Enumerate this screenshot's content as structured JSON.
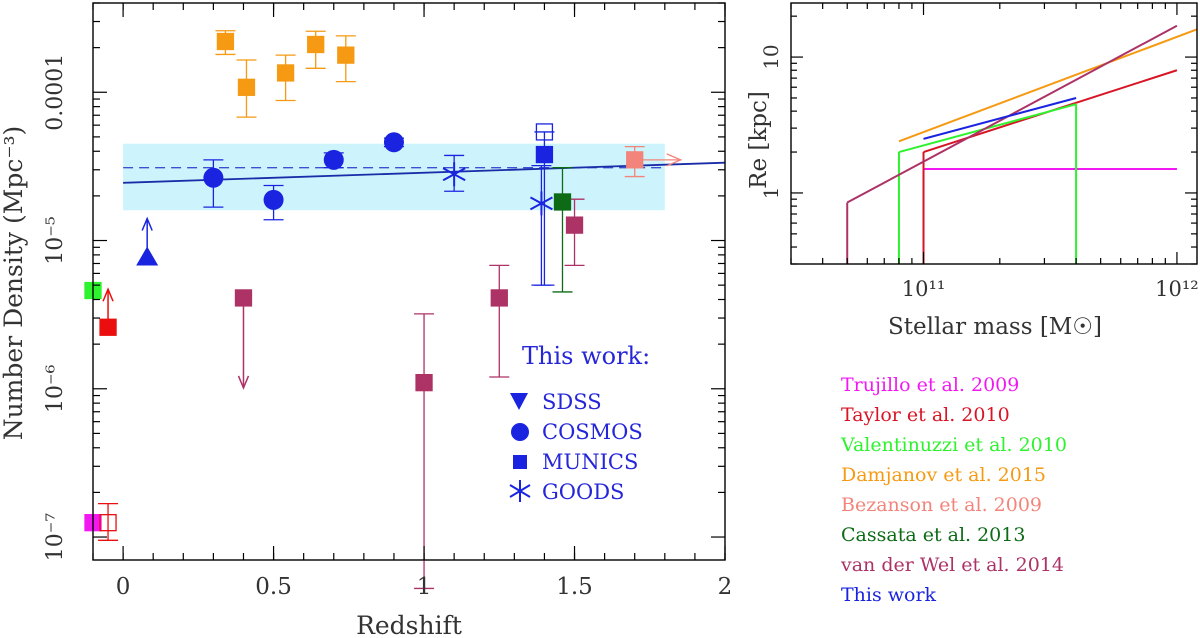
{
  "chart_data": [
    {
      "type": "scatter",
      "xlabel": "Redshift",
      "ylabel": "Number Density (Mpc⁻³)",
      "xlim": [
        -0.1,
        2.0
      ],
      "ylim": [
        7e-08,
        0.0004
      ],
      "yscale": "log",
      "x_ticks": [
        {
          "value": 0,
          "label": "0"
        },
        {
          "value": 0.5,
          "label": "0.5"
        },
        {
          "value": 1,
          "label": "1"
        },
        {
          "value": 1.5,
          "label": "1.5"
        },
        {
          "value": 2,
          "label": "2"
        }
      ],
      "y_ticks": [
        {
          "value": 1e-07,
          "label": "10⁻⁷"
        },
        {
          "value": 1e-06,
          "label": "10⁻⁶"
        },
        {
          "value": 1e-05,
          "label": "10⁻⁵"
        },
        {
          "value": 0.0001,
          "label": "0.0001"
        }
      ],
      "band": {
        "x": [
          0.0,
          1.8
        ],
        "y": [
          1.6e-05,
          4.5e-05
        ],
        "color": "#cdf4fc"
      },
      "reference_line": {
        "y": 3.1e-05,
        "x": [
          0.0,
          1.8
        ],
        "color": "#3c4fd0"
      },
      "fit_line": {
        "x": [
          0.0,
          2.0
        ],
        "y": [
          2.45e-05,
          3.35e-05
        ],
        "color": "#1a2da8"
      },
      "series": [
        {
          "name": "Damjanov et al. 2015",
          "color": "#f59a12",
          "marker": "square",
          "points": [
            {
              "x": 0.34,
              "y": 0.00022,
              "lo": 0.00018,
              "hi": 0.00026
            },
            {
              "x": 0.41,
              "y": 0.000108,
              "lo": 6.8e-05,
              "hi": 0.000165
            },
            {
              "x": 0.54,
              "y": 0.000135,
              "lo": 8.8e-05,
              "hi": 0.000178
            },
            {
              "x": 0.64,
              "y": 0.00021,
              "lo": 0.000145,
              "hi": 0.000258
            },
            {
              "x": 0.74,
              "y": 0.000178,
              "lo": 0.000118,
              "hi": 0.00024
            }
          ]
        },
        {
          "name": "COSMOS",
          "color": "#1a24e0",
          "marker": "circle",
          "points": [
            {
              "x": 0.3,
              "y": 2.65e-05,
              "lo": 1.68e-05,
              "hi": 3.5e-05
            },
            {
              "x": 0.5,
              "y": 1.88e-05,
              "lo": 1.38e-05,
              "hi": 2.35e-05
            },
            {
              "x": 0.7,
              "y": 3.5e-05,
              "lo": 3.1e-05,
              "hi": 3.9e-05
            },
            {
              "x": 0.9,
              "y": 4.6e-05,
              "lo": 4.3e-05,
              "hi": 4.9e-05
            }
          ]
        },
        {
          "name": "SDSS",
          "color": "#1a24e0",
          "marker": "triangle",
          "points": [
            {
              "x": 0.08,
              "y": 7.8e-06,
              "lower_limit": true
            }
          ]
        },
        {
          "name": "MUNICS",
          "color": "#1a24e0",
          "marker": "square",
          "points": [
            {
              "x": 1.4,
              "y": 3.8e-05,
              "lo": 5e-06,
              "hi": 5.4e-05
            }
          ]
        },
        {
          "name": "GOODS",
          "color": "#1a24e0",
          "marker": "star",
          "points": [
            {
              "x": 1.1,
              "y": 2.8e-05,
              "lo": 2.15e-05,
              "hi": 3.75e-05
            },
            {
              "x": 1.39,
              "y": 1.78e-05,
              "lo": 5e-06,
              "hi": 3.2e-05
            }
          ]
        },
        {
          "name": "van der Wel et al. 2014",
          "color": "#ad3266",
          "marker": "square",
          "points": [
            {
              "x": 0.4,
              "y": 4.1e-06,
              "upper_limit": true
            },
            {
              "x": 1.0,
              "y": 1.1e-06,
              "lo": 4.5e-08,
              "hi": 3.2e-06
            },
            {
              "x": 1.25,
              "y": 4.1e-06,
              "lo": 1.2e-06,
              "hi": 6.8e-06
            },
            {
              "x": 1.5,
              "y": 1.27e-05,
              "lo": 6.8e-06,
              "hi": 1.9e-05
            }
          ]
        },
        {
          "name": "Cassata et al. 2013",
          "color": "#0d6b16",
          "marker": "square",
          "points": [
            {
              "x": 1.46,
              "y": 1.82e-05,
              "lo": 4.5e-06,
              "hi": 3.1e-05
            }
          ]
        },
        {
          "name": "Bezanson et al. 2009",
          "color": "#f2847b",
          "marker": "square",
          "points": [
            {
              "x": 1.7,
              "y": 3.5e-05,
              "lo": 2.7e-05,
              "hi": 4.3e-05,
              "range_arrow": true
            }
          ]
        },
        {
          "name": "Trujillo et al. 2009",
          "color": "#f218f2",
          "marker": "square",
          "points": [
            {
              "x": -0.1,
              "y": 1.25e-07
            }
          ]
        },
        {
          "name": "Taylor et al. 2010",
          "color": "#ea0e0e",
          "marker": "square",
          "points": [
            {
              "x": -0.05,
              "y": 2.6e-06,
              "lower_limit": true
            },
            {
              "x": -0.05,
              "y": 1.25e-07,
              "lo": 9.5e-08,
              "hi": 1.68e-07,
              "open": true
            }
          ]
        },
        {
          "name": "Valentinuzzi et al. 2010",
          "color": "#2ef22e",
          "marker": "square",
          "points": [
            {
              "x": -0.1,
              "y": 4.6e-06
            }
          ]
        }
      ],
      "legend": {
        "title": "This work:",
        "entries": [
          "SDSS",
          "COSMOS",
          "MUNICS",
          "GOODS"
        ],
        "color": "#2626d9",
        "position": "bottom-right"
      }
    },
    {
      "type": "line",
      "xlabel": "Stellar mass [M☉]",
      "ylabel": "Re [kpc]",
      "xscale": "log",
      "yscale": "log",
      "xlim": [
        30000000000,
        1200000000000
      ],
      "ylim": [
        0.3,
        25
      ],
      "x_ticks": [
        {
          "value": 100000000000,
          "label": "10¹¹"
        },
        {
          "value": 1000000000000,
          "label": "10¹²"
        }
      ],
      "y_ticks": [
        {
          "value": 1,
          "label": "1"
        },
        {
          "value": 10,
          "label": "10"
        }
      ],
      "series": [
        {
          "name": "Trujillo et al. 2009",
          "color": "#f218f2",
          "points": [
            [
              100000000000,
              1.5
            ],
            [
              1000000000000,
              1.5
            ]
          ],
          "drop_edges": [
            100000000000
          ]
        },
        {
          "name": "Taylor et al. 2010",
          "color": "#d81525",
          "points": [
            [
              100000000000,
              2.0
            ],
            [
              1000000000000,
              8.0
            ]
          ],
          "drop_edges": [
            100000000000
          ]
        },
        {
          "name": "Valentinuzzi et al. 2010",
          "color": "#2ef22e",
          "points": [
            [
              80000000000,
              2.0
            ],
            [
              400000000000,
              4.5
            ]
          ],
          "drop_edges": [
            80000000000,
            400000000000
          ]
        },
        {
          "name": "Damjanov et al. 2015",
          "color": "#f59a12",
          "points": [
            [
              80000000000,
              2.4
            ],
            [
              1200000000000,
              16
            ]
          ],
          "drop_edges": []
        },
        {
          "name": "van der Wel et al. 2014",
          "color": "#ad3266",
          "points": [
            [
              50000000000,
              0.85
            ],
            [
              1000000000000,
              17
            ]
          ],
          "drop_edges": [
            50000000000
          ]
        },
        {
          "name": "This work",
          "color": "#1a24e0",
          "points": [
            [
              100000000000,
              2.5
            ],
            [
              400000000000,
              5.0
            ]
          ],
          "drop_edges": []
        }
      ]
    }
  ],
  "references": {
    "items": [
      {
        "label": "Trujillo et al. 2009",
        "color": "#f218f2"
      },
      {
        "label": "Taylor et al. 2010",
        "color": "#d81525"
      },
      {
        "label": "Valentinuzzi et al. 2010",
        "color": "#2ef22e"
      },
      {
        "label": "Damjanov et al. 2015",
        "color": "#f59a12"
      },
      {
        "label": "Bezanson et al. 2009",
        "color": "#f2847b"
      },
      {
        "label": "Cassata et al. 2013",
        "color": "#0d6b16"
      },
      {
        "label": "van der Wel et al. 2014",
        "color": "#ad3266"
      },
      {
        "label": "This work",
        "color": "#1a24e0"
      }
    ]
  }
}
